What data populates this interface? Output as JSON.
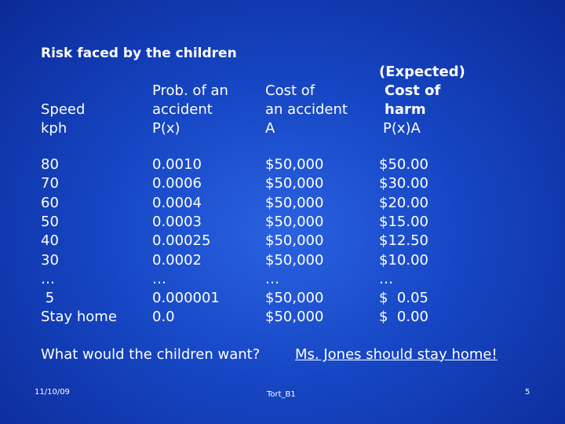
{
  "title": "Risk faced by the children",
  "table": {
    "headers": [
      [
        "Speed",
        "kph"
      ],
      [
        "Prob. of an",
        "accident",
        "P(x)"
      ],
      [
        "Cost of",
        "an accident",
        "A"
      ],
      [
        "(Expected)",
        "Cost of",
        "harm",
        "P(x)A"
      ]
    ],
    "rows": [
      [
        "80",
        "0.0010",
        "$50,000",
        "$50.00"
      ],
      [
        "70",
        "0.0006",
        "$50,000",
        "$30.00"
      ],
      [
        "60",
        "0.0004",
        "$50,000",
        "$20.00"
      ],
      [
        "50",
        "0.0003",
        "$50,000",
        "$15.00"
      ],
      [
        "40",
        "0.00025",
        "$50,000",
        "$12.50"
      ],
      [
        "30",
        "0.0002",
        "$50,000",
        "$10.00"
      ],
      [
        "…",
        "…",
        "…",
        "…"
      ],
      [
        " 5",
        "0.000001",
        "$50,000",
        "$  0.05"
      ],
      [
        "Stay home",
        "0.0",
        "$50,000",
        "$  0.00"
      ]
    ]
  },
  "question": "What would the children want?",
  "answer": "Ms. Jones should stay home!",
  "footer": {
    "date": "11/10/09",
    "label": "Tort_B1",
    "page": "5"
  }
}
